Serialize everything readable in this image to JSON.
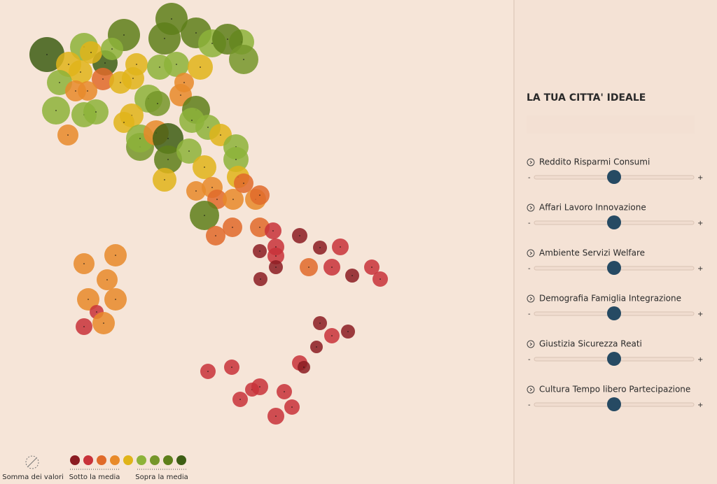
{
  "sidebar": {
    "title": "LA TUA CITTA' IDEALE",
    "sliders": [
      {
        "label": "Reddito Risparmi Consumi",
        "min": "-",
        "max": "+"
      },
      {
        "label": "Affari Lavoro Innovazione",
        "min": "-",
        "max": "+"
      },
      {
        "label": "Ambiente Servizi Welfare",
        "min": "-",
        "max": "+"
      },
      {
        "label": "Demografia Famiglia Integrazione",
        "min": "-",
        "max": "+"
      },
      {
        "label": "Giustizia Sicurezza Reati",
        "min": "-",
        "max": "+"
      },
      {
        "label": "Cultura Tempo libero Partecipazione",
        "min": "-",
        "max": "+"
      }
    ]
  },
  "legend": {
    "sum": "Somma dei valori",
    "below": "Sotto la media",
    "above": "Sopra la media"
  }
}
